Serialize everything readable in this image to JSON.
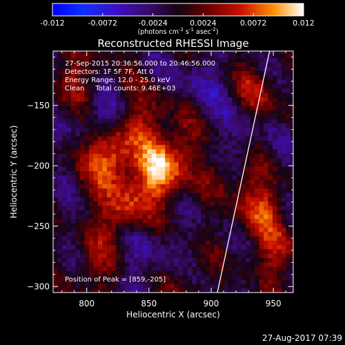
{
  "chart_data": {
    "type": "heatmap",
    "colorbar": {
      "ticks": [
        "-0.012",
        "-0.0072",
        "-0.0024",
        "0.0024",
        "0.0072",
        "0.012"
      ],
      "range": [
        -0.012,
        0.012
      ],
      "unit_prefix": "(photons cm",
      "unit_exp1": "-2",
      "unit_mid": " s",
      "unit_exp2": "-1",
      "unit_mid2": " asec",
      "unit_exp3": "-2",
      "unit_suffix": ")"
    },
    "title": "Reconstructed RHESSI Image",
    "xlabel": "Heliocentric X (arcsec)",
    "ylabel": "Heliocentric Y (arcsec)",
    "xlim": [
      773,
      966
    ],
    "ylim": [
      -305,
      -105
    ],
    "x_ticks": [
      800,
      850,
      900,
      950
    ],
    "y_ticks": [
      -150,
      -200,
      -250,
      -300
    ],
    "annotations": [
      "27-Sep-2015 20:36:56.000 to 20:46:56.000",
      "Detectors: 1F 5F 7F, Att 0",
      "Energy Range: 12.0 - 25.0 keV",
      "Clean     Total counts: 9.46E+03"
    ],
    "peak_label": "Position of Peak = [859,-205]",
    "peak": [
      859,
      -205
    ],
    "limb_line": [
      [
        905,
        -305
      ],
      [
        947,
        -105
      ]
    ],
    "sources": [
      {
        "x": 859,
        "y": -205,
        "value": 0.012
      },
      {
        "x": 818,
        "y": -192,
        "value": 0.01
      },
      {
        "x": 828,
        "y": -238,
        "value": 0.008
      },
      {
        "x": 881,
        "y": -172,
        "value": 0.0055
      },
      {
        "x": 848,
        "y": -162,
        "value": 0.0045
      },
      {
        "x": 938,
        "y": -232,
        "value": 0.0065
      },
      {
        "x": 952,
        "y": -270,
        "value": 0.005
      },
      {
        "x": 937,
        "y": -140,
        "value": 0.0045
      },
      {
        "x": 808,
        "y": -282,
        "value": 0.004
      },
      {
        "x": 878,
        "y": -292,
        "value": 0.003
      },
      {
        "x": 790,
        "y": -128,
        "value": 0.004
      },
      {
        "x": 911,
        "y": -205,
        "value": 0.003
      },
      {
        "x": 860,
        "y": -255,
        "value": 0.002
      }
    ]
  },
  "footer": {
    "timestamp": "27-Aug-2017 07:39"
  }
}
